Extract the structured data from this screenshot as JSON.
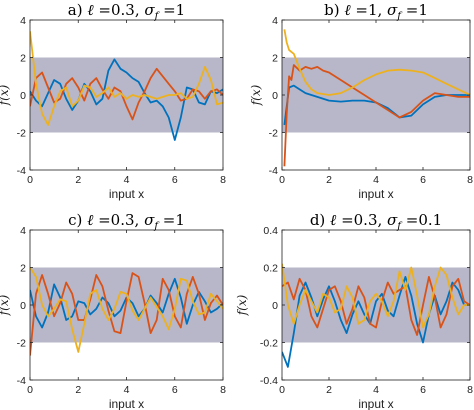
{
  "chart_data": [
    {
      "type": "line",
      "title": "a) ℓ =0.3, σ_f =1",
      "title_parts": {
        "prefix": "a) ",
        "ell": "ℓ",
        "ell_val": " =0.3, ",
        "sigma": "σ",
        "sub": "f",
        "sigma_val": " =1"
      },
      "xlabel": "input x",
      "ylabel": "f(x)",
      "xlim": [
        0,
        8
      ],
      "ylim": [
        -4,
        4
      ],
      "xticks": [
        0,
        2,
        4,
        6,
        8
      ],
      "yticks": [
        -4,
        -2,
        0,
        2,
        4
      ],
      "ytick_labels": [
        "-4",
        "-2",
        "0",
        "2",
        "4"
      ],
      "band": [
        -2,
        2
      ],
      "band_color": "#b7b7c9",
      "series": [
        {
          "color": "#0072bd",
          "x": [
            0,
            0.25,
            0.5,
            0.75,
            1,
            1.25,
            1.5,
            1.75,
            2,
            2.25,
            2.5,
            2.75,
            3,
            3.25,
            3.5,
            3.75,
            4,
            4.25,
            4.5,
            4.75,
            5,
            5.25,
            5.5,
            5.75,
            6,
            6.25,
            6.5,
            6.75,
            7,
            7.25,
            7.5,
            7.75,
            8
          ],
          "values": [
            0.2,
            -0.3,
            -0.6,
            0.1,
            0.8,
            0.6,
            -0.2,
            -0.8,
            -0.3,
            0.6,
            0.2,
            -0.5,
            -0.2,
            1.3,
            1.9,
            1.4,
            1.2,
            0.9,
            0.7,
            0.1,
            -0.4,
            -0.3,
            -0.6,
            -1.2,
            -2.4,
            -1.2,
            0.4,
            0.3,
            -0.4,
            -0.5,
            0.2,
            0.1,
            0.3
          ]
        },
        {
          "color": "#d95319",
          "x": [
            0,
            0.25,
            0.5,
            0.75,
            1,
            1.25,
            1.5,
            1.75,
            2,
            2.25,
            2.5,
            2.75,
            3,
            3.25,
            3.5,
            3.75,
            4,
            4.25,
            4.5,
            4.75,
            5,
            5.25,
            5.5,
            5.75,
            6,
            6.25,
            6.5,
            6.75,
            7,
            7.25,
            7.5,
            7.75,
            8
          ],
          "values": [
            -0.6,
            0.9,
            1.2,
            0.4,
            -0.4,
            -0.2,
            0.6,
            0.9,
            0.4,
            -0.3,
            0.6,
            0.9,
            0.3,
            -0.2,
            0.4,
            0.2,
            -0.6,
            -1.3,
            -0.4,
            0.2,
            0.9,
            1.4,
            1.0,
            0.6,
            0.2,
            -0.3,
            -0.2,
            0.3,
            0.2,
            -0.2,
            0.2,
            0.3,
            0.0
          ]
        },
        {
          "color": "#edb120",
          "x": [
            0,
            0.25,
            0.5,
            0.75,
            1,
            1.25,
            1.5,
            1.75,
            2,
            2.25,
            2.5,
            2.75,
            3,
            3.25,
            3.5,
            3.75,
            4,
            4.25,
            4.5,
            4.75,
            5,
            5.25,
            5.5,
            5.75,
            6,
            6.25,
            6.5,
            6.75,
            7,
            7.25,
            7.5,
            7.75,
            8
          ],
          "values": [
            3.4,
            0.6,
            -1.0,
            -1.6,
            -0.6,
            0.2,
            0.4,
            -0.6,
            -0.3,
            0.5,
            0.4,
            -0.1,
            0.1,
            0.4,
            -0.1,
            0.1,
            -0.2,
            0.0,
            -0.1,
            0.0,
            -0.1,
            -0.2,
            -0.1,
            0.0,
            0.0,
            0.1,
            -0.2,
            -0.1,
            0.6,
            1.5,
            0.8,
            -0.5,
            -0.4
          ]
        }
      ]
    },
    {
      "type": "line",
      "title": "b) ℓ =1, σ_f =1",
      "title_parts": {
        "prefix": "b) ",
        "ell": "ℓ",
        "ell_val": " =1, ",
        "sigma": "σ",
        "sub": "f",
        "sigma_val": " =1"
      },
      "xlabel": "input x",
      "ylabel": "f(x)",
      "xlim": [
        0,
        8
      ],
      "ylim": [
        -4,
        4
      ],
      "xticks": [
        0,
        2,
        4,
        6,
        8
      ],
      "yticks": [
        -4,
        -2,
        0,
        2,
        4
      ],
      "ytick_labels": [
        "-4",
        "-2",
        "0",
        "2",
        "4"
      ],
      "band": [
        -2,
        2
      ],
      "band_color": "#b7b7c9",
      "series": [
        {
          "color": "#0072bd",
          "x": [
            0.1,
            0.3,
            0.5,
            0.75,
            1,
            1.5,
            2,
            2.5,
            3,
            3.5,
            4,
            4.5,
            5,
            5.5,
            6,
            6.5,
            7,
            7.5,
            8
          ],
          "values": [
            -1.6,
            0.4,
            0.5,
            0.3,
            0.1,
            -0.1,
            -0.3,
            -0.35,
            -0.3,
            -0.3,
            -0.4,
            -0.7,
            -1.2,
            -1.1,
            -0.5,
            -0.1,
            0.0,
            0.0,
            0.0
          ]
        },
        {
          "color": "#d95319",
          "x": [
            0.1,
            0.2,
            0.3,
            0.4,
            0.5,
            0.75,
            1,
            1.25,
            1.5,
            1.75,
            2,
            2.5,
            3,
            3.5,
            4,
            4.5,
            5,
            5.5,
            6,
            6.5,
            7,
            7.5,
            8
          ],
          "values": [
            -3.8,
            -1.0,
            1.0,
            0.8,
            1.6,
            1.3,
            1.5,
            1.4,
            1.5,
            1.3,
            1.2,
            0.8,
            0.4,
            0.0,
            -0.4,
            -0.8,
            -1.2,
            -0.9,
            -0.3,
            0.1,
            0.0,
            -0.1,
            -0.1
          ]
        },
        {
          "color": "#edb120",
          "x": [
            0.1,
            0.2,
            0.3,
            0.4,
            0.5,
            0.75,
            1,
            1.25,
            1.5,
            2,
            2.5,
            3,
            3.5,
            4,
            4.5,
            5,
            5.5,
            6,
            6.5,
            7,
            7.5,
            8
          ],
          "values": [
            3.5,
            2.8,
            2.4,
            2.3,
            2.2,
            1.4,
            0.7,
            0.3,
            0.1,
            0.0,
            0.1,
            0.4,
            0.8,
            1.1,
            1.3,
            1.35,
            1.3,
            1.2,
            0.9,
            0.6,
            0.3,
            0.0
          ]
        }
      ]
    },
    {
      "type": "line",
      "title": "c) ℓ =0.3, σ_f =1",
      "title_parts": {
        "prefix": "c) ",
        "ell": "ℓ",
        "ell_val": " =0.3, ",
        "sigma": "σ",
        "sub": "f",
        "sigma_val": " =1"
      },
      "xlabel": "input x",
      "ylabel": "f(x)",
      "xlim": [
        0,
        8
      ],
      "ylim": [
        -4,
        4
      ],
      "xticks": [
        0,
        2,
        4,
        6,
        8
      ],
      "yticks": [
        -4,
        -2,
        0,
        2,
        4
      ],
      "ytick_labels": [
        "-4",
        "-2",
        "0",
        "2",
        "4"
      ],
      "band": [
        -2,
        2
      ],
      "band_color": "#b7b7c9",
      "series": [
        {
          "color": "#0072bd",
          "x": [
            0,
            0.25,
            0.5,
            0.75,
            1,
            1.25,
            1.5,
            1.75,
            2,
            2.25,
            2.5,
            2.75,
            3,
            3.25,
            3.5,
            3.75,
            4,
            4.25,
            4.5,
            4.75,
            5,
            5.25,
            5.5,
            5.75,
            6,
            6.25,
            6.5,
            6.75,
            7,
            7.25,
            7.5,
            7.75,
            8
          ],
          "values": [
            0.8,
            -0.6,
            -1.2,
            -0.4,
            1.1,
            0.4,
            -0.8,
            -0.6,
            0.2,
            0.1,
            -0.5,
            -0.2,
            0.4,
            0.1,
            -0.6,
            -0.3,
            0.4,
            0.1,
            -0.6,
            -0.2,
            0.5,
            0.1,
            -0.4,
            0.6,
            1.4,
            0.4,
            -1.0,
            0.0,
            0.7,
            0.2,
            -0.4,
            -0.2,
            0.1
          ]
        },
        {
          "color": "#d95319",
          "x": [
            0,
            0.25,
            0.5,
            0.75,
            1,
            1.25,
            1.5,
            1.75,
            2,
            2.25,
            2.5,
            2.75,
            3,
            3.25,
            3.5,
            3.75,
            4,
            4.25,
            4.5,
            4.75,
            5,
            5.25,
            5.5,
            5.75,
            6,
            6.25,
            6.5,
            6.75,
            7,
            7.25,
            7.5,
            7.75,
            8
          ],
          "values": [
            -2.7,
            0.6,
            1.6,
            0.6,
            -0.6,
            0.1,
            1.2,
            0.6,
            -0.8,
            -0.8,
            0.3,
            1.6,
            1.0,
            -0.3,
            -1.4,
            -1.5,
            0.2,
            1.7,
            1.5,
            0.1,
            -1.5,
            -0.8,
            1.4,
            0.8,
            -0.6,
            -1.2,
            0.6,
            1.5,
            0.6,
            -0.8,
            0.1,
            0.5,
            0.0
          ]
        },
        {
          "color": "#edb120",
          "x": [
            0,
            0.25,
            0.5,
            0.75,
            1,
            1.25,
            1.5,
            1.75,
            2,
            2.25,
            2.5,
            2.75,
            3,
            3.25,
            3.5,
            3.75,
            4,
            4.25,
            4.5,
            4.75,
            5,
            5.25,
            5.5,
            5.75,
            6,
            6.25,
            6.5,
            6.75,
            7,
            7.25,
            7.5,
            7.75,
            8
          ],
          "values": [
            2.0,
            1.5,
            0.0,
            -0.6,
            -0.2,
            0.3,
            0.2,
            -1.3,
            -2.5,
            -1.0,
            0.6,
            0.8,
            -0.2,
            -0.8,
            -0.2,
            0.7,
            0.6,
            -0.3,
            -0.8,
            -0.2,
            0.4,
            -0.1,
            -0.6,
            -1.3,
            -0.2,
            1.4,
            1.3,
            0.2,
            -0.5,
            -0.4,
            0.6,
            0.2,
            -0.2
          ]
        }
      ]
    },
    {
      "type": "line",
      "title": "d) ℓ =0.3, σ_f =0.1",
      "title_parts": {
        "prefix": "d) ",
        "ell": "ℓ",
        "ell_val": " =0.3, ",
        "sigma": "σ",
        "sub": "f",
        "sigma_val": " =0.1"
      },
      "xlabel": "input x",
      "ylabel": "f(x)",
      "xlim": [
        0,
        8
      ],
      "ylim": [
        -0.4,
        0.4
      ],
      "xticks": [
        0,
        2,
        4,
        6,
        8
      ],
      "yticks": [
        -0.4,
        -0.2,
        0,
        0.2,
        0.4
      ],
      "ytick_labels": [
        "-0.4",
        "-0.2",
        "0",
        "0.2",
        "0.4"
      ],
      "band": [
        -0.2,
        0.2
      ],
      "band_color": "#b7b7c9",
      "series": [
        {
          "color": "#0072bd",
          "x": [
            0,
            0.25,
            0.5,
            0.75,
            1,
            1.25,
            1.5,
            1.75,
            2,
            2.25,
            2.5,
            2.75,
            3,
            3.25,
            3.5,
            3.75,
            4,
            4.25,
            4.5,
            4.75,
            5,
            5.25,
            5.5,
            5.75,
            6,
            6.25,
            6.5,
            6.75,
            7,
            7.25,
            7.5,
            7.75,
            8
          ],
          "values": [
            -0.25,
            -0.33,
            -0.15,
            0.05,
            0.12,
            0.04,
            -0.06,
            0.03,
            0.1,
            0.02,
            -0.08,
            -0.15,
            -0.05,
            0.02,
            -0.05,
            -0.1,
            0.02,
            0.06,
            -0.03,
            -0.06,
            0.05,
            0.15,
            0.05,
            -0.1,
            -0.2,
            -0.05,
            0.05,
            -0.05,
            0.02,
            0.12,
            0.08,
            0.0,
            0.0
          ]
        },
        {
          "color": "#d95319",
          "x": [
            0,
            0.25,
            0.5,
            0.75,
            1,
            1.25,
            1.5,
            1.75,
            2,
            2.25,
            2.5,
            2.75,
            3,
            3.25,
            3.5,
            3.75,
            4,
            4.25,
            4.5,
            4.75,
            5,
            5.25,
            5.5,
            5.75,
            6,
            6.25,
            6.5,
            6.75,
            7,
            7.25,
            7.5,
            7.75,
            8
          ],
          "values": [
            0.1,
            0.12,
            0.03,
            0.14,
            0.08,
            -0.06,
            -0.12,
            -0.02,
            0.08,
            0.1,
            0.02,
            -0.1,
            -0.02,
            0.1,
            0.04,
            -0.1,
            -0.12,
            0.02,
            0.12,
            0.06,
            0.08,
            0.1,
            -0.08,
            -0.16,
            0.0,
            0.15,
            0.04,
            -0.12,
            -0.05,
            0.1,
            0.14,
            0.02,
            0.0
          ]
        },
        {
          "color": "#edb120",
          "x": [
            0,
            0.25,
            0.5,
            0.75,
            1,
            1.25,
            1.5,
            1.75,
            2,
            2.25,
            2.5,
            2.75,
            3,
            3.25,
            3.5,
            3.75,
            4,
            4.25,
            4.5,
            4.75,
            5,
            5.25,
            5.5,
            5.75,
            6,
            6.25,
            6.5,
            6.75,
            7,
            7.25,
            7.5,
            7.75,
            8
          ],
          "values": [
            0.22,
            0.0,
            -0.1,
            0.0,
            0.08,
            0.02,
            -0.04,
            0.06,
            0.04,
            -0.04,
            -0.02,
            0.1,
            0.04,
            -0.1,
            -0.08,
            0.02,
            0.06,
            0.02,
            -0.06,
            0.02,
            0.18,
            0.08,
            0.2,
            0.05,
            -0.12,
            -0.05,
            0.1,
            0.2,
            0.16,
            0.04,
            -0.05,
            0.0,
            0.0
          ]
        }
      ]
    }
  ]
}
